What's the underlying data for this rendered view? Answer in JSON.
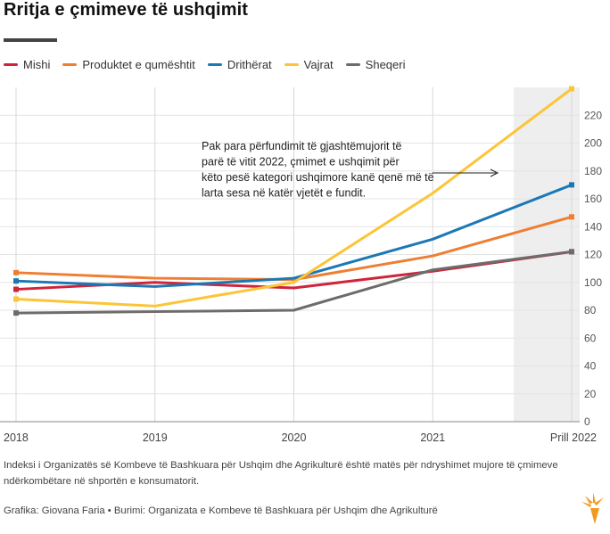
{
  "title": "Rritja e çmimeve të ushqimit",
  "footnote": "Indeksi i Organizatës së Kombeve të Bashkuara për Ushqim dhe Agrikulturë është matës për ndryshimet mujore të çmimeve ndërkombëtare në shportën e konsumatorit.",
  "credit": "Grafika: Giovana Faria • Burimi: Organizata e Kombeve të Bashkuara për Ushqim dhe Agrikulturë",
  "chart_data": {
    "type": "line",
    "categories": [
      "2018",
      "2019",
      "2020",
      "2021",
      "Prill 2022"
    ],
    "ylim": [
      0,
      240
    ],
    "yticks": [
      0,
      20,
      40,
      60,
      80,
      100,
      120,
      140,
      160,
      180,
      200,
      220
    ],
    "y_axis_position": "right",
    "grid": true,
    "legend_position": "top-left",
    "shaded_region": "Prill 2022",
    "annotation": "Pak para përfundimit të gjashtëmujorit të parë të vitit 2022, çmimet e ushqimit për këto pesë kategori ushqimore kanë qenë më të larta sesa në katër vjetët e fundit.",
    "series": [
      {
        "name": "Mishi",
        "color": "#d0243b",
        "values": [
          95,
          100,
          96,
          108,
          122
        ]
      },
      {
        "name": "Produktet e qumështit",
        "color": "#ee7f32",
        "values": [
          107,
          103,
          102,
          119,
          147
        ]
      },
      {
        "name": "Drithërat",
        "color": "#1b78b5",
        "values": [
          101,
          97,
          103,
          131,
          170
        ]
      },
      {
        "name": "Vajrat",
        "color": "#fcc537",
        "values": [
          88,
          83,
          100,
          164,
          239
        ]
      },
      {
        "name": "Sheqeri",
        "color": "#6e6b6b",
        "values": [
          78,
          79,
          80,
          109,
          122
        ]
      }
    ]
  }
}
